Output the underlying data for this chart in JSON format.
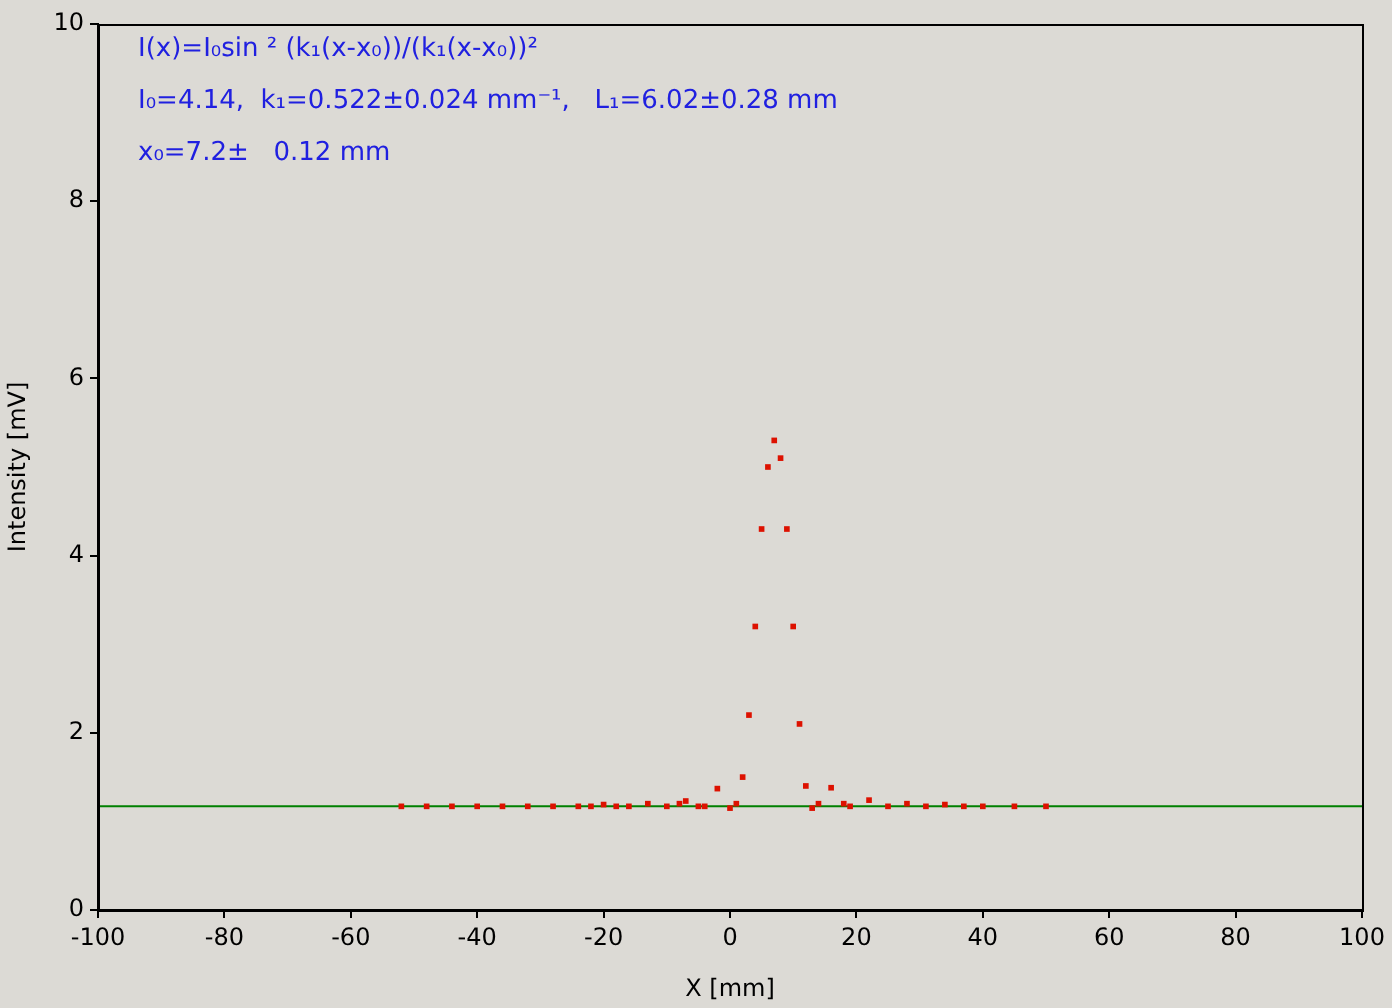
{
  "chart_data": {
    "type": "scatter",
    "xlabel": "X [mm]",
    "ylabel": "Intensity [mV]",
    "annotations": [
      "I(x)=I₀sin ² (k₁(x-x₀))/(k₁(x-x₀))²",
      "I₀=4.14,  k₁=0.522±0.024 mm⁻¹,   L₁=6.02±0.28 mm",
      "x₀=7.2±   0.12 mm"
    ],
    "xlim": [
      -100,
      100
    ],
    "xticks": [
      -100,
      -80,
      -60,
      -40,
      -20,
      0,
      20,
      40,
      60,
      80,
      100
    ],
    "ylim": [
      0,
      10
    ],
    "yticks": [
      0,
      2,
      4,
      6,
      8,
      10
    ],
    "grid": false,
    "legend": false,
    "marker": "square",
    "ref_lines": [
      {
        "axis": "y",
        "value": 1.17,
        "color": "#008000"
      }
    ],
    "series": [
      {
        "color": "#dd1100",
        "x": [
          -52,
          -48,
          -44,
          -40,
          -36,
          -32,
          -28,
          -24,
          -22,
          -20,
          -18,
          -16,
          -13,
          -10,
          -8,
          -7,
          -5,
          -4,
          -2,
          0,
          1,
          2,
          3,
          4,
          5,
          6,
          7,
          8,
          9,
          10,
          11,
          12,
          13,
          14,
          16,
          18,
          19,
          22,
          25,
          28,
          31,
          34,
          37,
          40,
          45,
          50
        ],
        "values": [
          1.17,
          1.17,
          1.17,
          1.17,
          1.17,
          1.17,
          1.17,
          1.17,
          1.17,
          1.19,
          1.17,
          1.17,
          1.2,
          1.17,
          1.2,
          1.23,
          1.17,
          1.17,
          1.37,
          1.15,
          1.2,
          1.5,
          2.2,
          3.2,
          4.3,
          5.0,
          5.3,
          5.1,
          4.3,
          3.2,
          2.1,
          1.4,
          1.15,
          1.2,
          1.38,
          1.2,
          1.17,
          1.24,
          1.17,
          1.2,
          1.17,
          1.19,
          1.17,
          1.17,
          1.17,
          1.17
        ]
      }
    ]
  }
}
